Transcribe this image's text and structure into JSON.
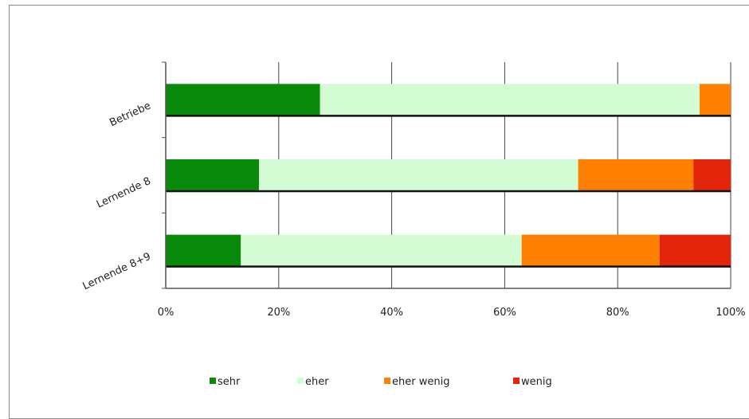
{
  "chart_data": {
    "type": "bar",
    "orientation": "horizontal",
    "stacked": "percent",
    "categories": [
      "Betriebe",
      "Lernende 8",
      "Lernende 8+9"
    ],
    "series": [
      {
        "name": "sehr",
        "color": "#0a8a0a",
        "values": [
          27.3,
          16.5,
          13.3
        ]
      },
      {
        "name": "eher",
        "color": "#d4fcd4",
        "values": [
          67.2,
          56.5,
          49.7
        ]
      },
      {
        "name": "eher wenig",
        "color": "#ff7f00",
        "values": [
          5.5,
          20.4,
          24.4
        ]
      },
      {
        "name": "wenig",
        "color": "#e3250b",
        "values": [
          0.0,
          6.6,
          12.6
        ]
      }
    ],
    "xlim": [
      0,
      100
    ],
    "x_ticks": [
      "0%",
      "20%",
      "40%",
      "60%",
      "80%",
      "100%"
    ],
    "grid": true,
    "legend_position": "bottom"
  }
}
